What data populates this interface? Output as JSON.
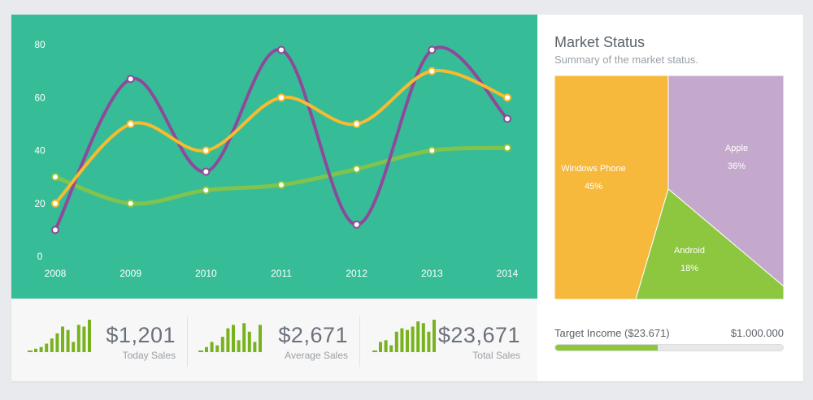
{
  "chart_data": {
    "type": "line",
    "x": [
      "2008",
      "2009",
      "2010",
      "2011",
      "2012",
      "2013",
      "2014"
    ],
    "ylim": [
      0,
      80
    ],
    "yticks": [
      "0",
      "20",
      "40",
      "60",
      "80"
    ],
    "grid": false,
    "series": [
      {
        "color": "#8e4a9a",
        "values": [
          10,
          67,
          32,
          78,
          12,
          78,
          52
        ]
      },
      {
        "color": "#f8bb2e",
        "values": [
          20,
          50,
          40,
          60,
          50,
          70,
          60
        ]
      },
      {
        "color": "#8dc63f",
        "values": [
          30,
          20,
          25,
          27,
          33,
          40,
          41
        ]
      }
    ]
  },
  "stats": [
    {
      "value": "$1,201",
      "label": "Today Sales",
      "bars": [
        2,
        3,
        5,
        8,
        11,
        15,
        13,
        6,
        16,
        15,
        19,
        20
      ]
    },
    {
      "value": "$2,671",
      "label": "Average Sales",
      "bars": [
        3,
        6,
        4,
        9,
        14,
        16,
        7,
        17,
        12,
        6,
        16,
        20
      ]
    },
    {
      "value": "$23,671",
      "label": "Total Sales",
      "bars": [
        6,
        7,
        4,
        12,
        14,
        13,
        15,
        18,
        17,
        12,
        19,
        20
      ]
    }
  ],
  "market": {
    "title": "Market Status",
    "subtitle": "Summary of the market status.",
    "segments": [
      {
        "name": "Windows Phone",
        "percent": "45%",
        "color": "#f6b93b"
      },
      {
        "name": "Apple",
        "percent": "36%",
        "color": "#c5a9cd"
      },
      {
        "name": "Android",
        "percent": "18%",
        "color": "#8dc63f"
      }
    ],
    "target_label": "Target Income ($23.671)",
    "target_max": "$1.000.000",
    "target_progress": 0.45
  },
  "colors": {
    "chart_bg": "#37bc98",
    "spark": "#79b21f"
  }
}
